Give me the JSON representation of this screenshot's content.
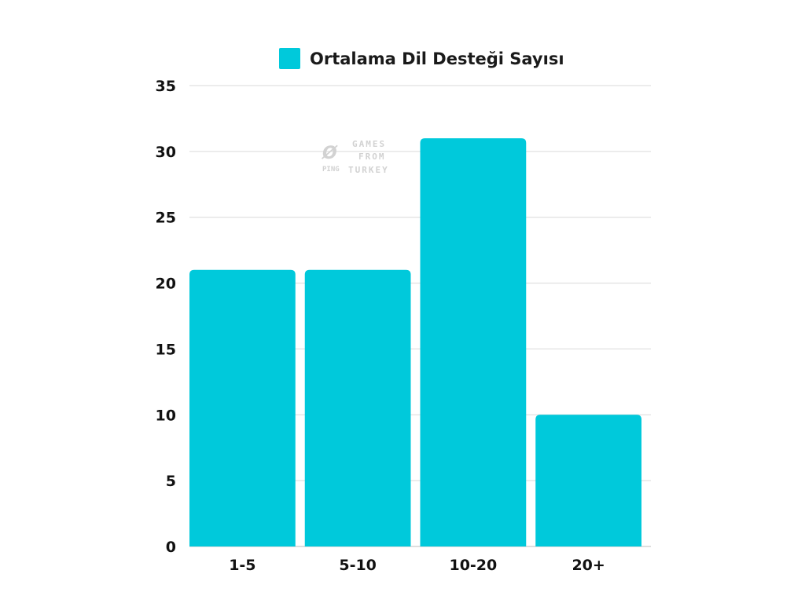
{
  "chart_data": {
    "type": "bar",
    "categories": [
      "1-5",
      "5-10",
      "10-20",
      "20+"
    ],
    "series": [
      {
        "name": "Ortalama Dil Desteği Sayısı",
        "values": [
          21,
          21,
          31,
          10
        ]
      }
    ],
    "title": "",
    "xlabel": "",
    "ylabel": "",
    "ylim": [
      0,
      35
    ],
    "yticks": [
      0,
      5,
      10,
      15,
      20,
      25,
      30,
      35
    ],
    "grid": true,
    "legend_position": "top-center",
    "colors": {
      "bar": "#00c9db",
      "grid": "#d9d9d9",
      "text": "#111111"
    }
  },
  "watermark": {
    "brand": "PING",
    "symbol": "Ø",
    "lines": [
      "GAMES",
      "FROM",
      "TURKEY"
    ]
  }
}
